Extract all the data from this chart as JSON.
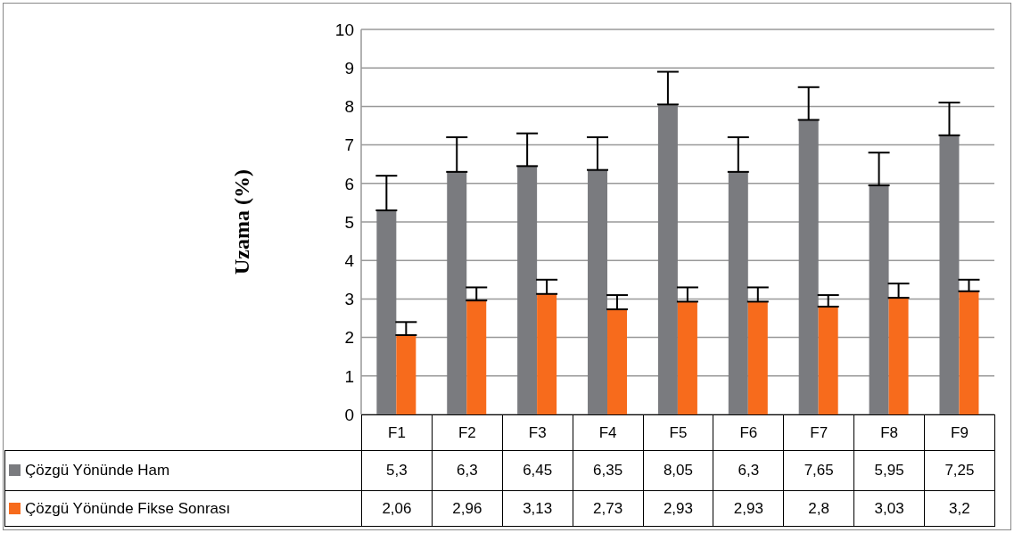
{
  "chart_data": {
    "type": "bar",
    "ylabel": "Uzama (%)",
    "categories": [
      "F1",
      "F2",
      "F3",
      "F4",
      "F5",
      "F6",
      "F7",
      "F8",
      "F9"
    ],
    "series": [
      {
        "name": "Çözgü Yönünde Ham",
        "color": "#7a7b7f",
        "values": [
          5.3,
          6.3,
          6.45,
          6.35,
          8.05,
          6.3,
          7.65,
          5.95,
          7.25
        ],
        "value_labels": [
          "5,3",
          "6,3",
          "6,45",
          "6,35",
          "8,05",
          "6,3",
          "7,65",
          "5,95",
          "7,25"
        ],
        "errors": [
          [
            5.3,
            6.2
          ],
          [
            6.3,
            7.2
          ],
          [
            6.45,
            7.3
          ],
          [
            6.35,
            7.2
          ],
          [
            8.05,
            8.9
          ],
          [
            6.3,
            7.2
          ],
          [
            7.65,
            8.5
          ],
          [
            5.95,
            6.8
          ],
          [
            7.25,
            8.1
          ]
        ]
      },
      {
        "name": "Çözgü Yönünde Fikse Sonrası",
        "color": "#f76b1c",
        "values": [
          2.06,
          2.96,
          3.13,
          2.73,
          2.93,
          2.93,
          2.8,
          3.03,
          3.2
        ],
        "value_labels": [
          "2,06",
          "2,96",
          "3,13",
          "2,73",
          "2,93",
          "2,93",
          "2,8",
          "3,03",
          "3,2"
        ],
        "errors": [
          [
            2.06,
            2.4
          ],
          [
            2.96,
            3.3
          ],
          [
            3.13,
            3.5
          ],
          [
            2.73,
            3.1
          ],
          [
            2.93,
            3.3
          ],
          [
            2.93,
            3.3
          ],
          [
            2.8,
            3.1
          ],
          [
            3.03,
            3.4
          ],
          [
            3.2,
            3.5
          ]
        ]
      }
    ],
    "ylim": [
      0,
      10
    ],
    "yticks": [
      0,
      1,
      2,
      3,
      4,
      5,
      6,
      7,
      8,
      9,
      10
    ],
    "grid": "y",
    "legend": "bottom left"
  }
}
